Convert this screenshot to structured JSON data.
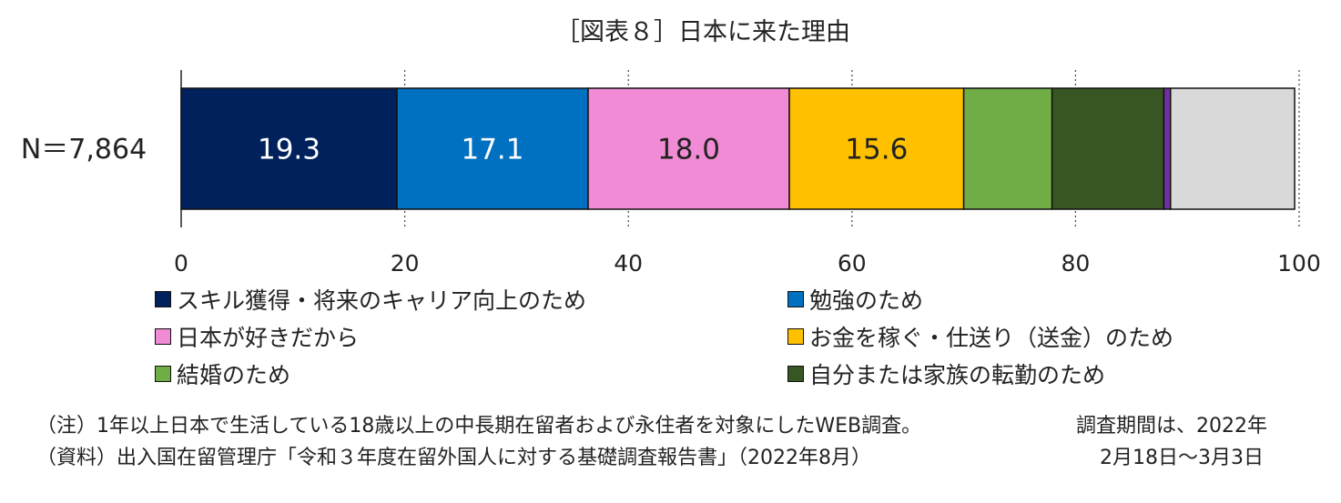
{
  "chart_data": {
    "type": "bar",
    "orientation": "horizontal",
    "stacked": true,
    "title": "［図表８］日本に来た理由",
    "categories": [
      "N＝7,864"
    ],
    "series": [
      {
        "name": "スキル獲得・将来のキャリア向上のため",
        "values": [
          19.3
        ],
        "color": "#00215C",
        "label_color": "#FFFFFF",
        "data_label": "19.3"
      },
      {
        "name": "勉強のため",
        "values": [
          17.1
        ],
        "color": "#0070C0",
        "label_color": "#FFFFFF",
        "data_label": "17.1"
      },
      {
        "name": "日本が好きだから",
        "values": [
          18.0
        ],
        "color": "#F18BD5",
        "label_color": "#222222",
        "data_label": "18.0"
      },
      {
        "name": "お金を稼ぐ・仕送り（送金）のため",
        "values": [
          15.6
        ],
        "color": "#FFC000",
        "label_color": "#222222",
        "data_label": "15.6"
      },
      {
        "name": "結婚のため",
        "values": [
          7.9
        ],
        "color": "#70AD47",
        "label_color": "#222222",
        "data_label": ""
      },
      {
        "name": "自分または家族の転勤のため",
        "values": [
          10.0
        ],
        "color": "#375623",
        "label_color": "#FFFFFF",
        "data_label": ""
      },
      {
        "name": "",
        "values": [
          0.6
        ],
        "color": "#7030A0",
        "label_color": "#FFFFFF",
        "data_label": ""
      },
      {
        "name": "",
        "values": [
          11.1
        ],
        "color": "#D9D9D9",
        "label_color": "#222222",
        "data_label": ""
      }
    ],
    "xlim": [
      0,
      100
    ],
    "xticks": [
      "0",
      "20",
      "40",
      "60",
      "80",
      "100"
    ],
    "xgrid": "dotted",
    "legend_position": "bottom"
  },
  "notes": {
    "note1": "（注）1年以上日本で生活している18歳以上の中長期在留者および永住者を対象にしたWEB調査。",
    "source": "（資料）出入国在留管理庁「令和３年度在留外国人に対する基礎調査報告書」（2022年8月）",
    "period_line1": "調査期間は、2022年",
    "period_line2": "2月18日～3月3日"
  }
}
